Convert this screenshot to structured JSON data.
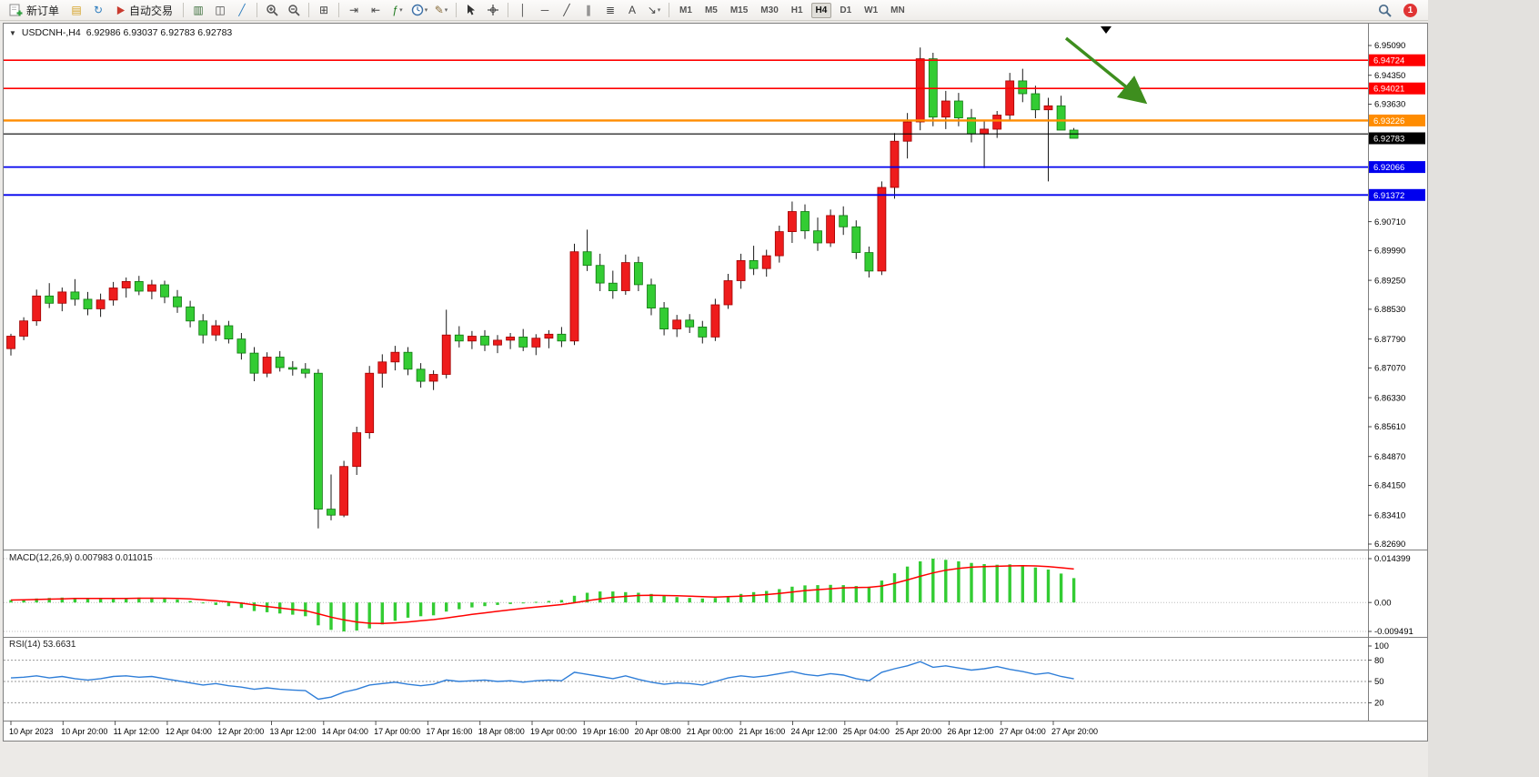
{
  "header": {
    "expander_glyph": "▼",
    "symbol_title": "USDCNH-,H4",
    "ohlc": "6.92986 6.93037 6.92783 6.92783"
  },
  "toolbar": {
    "dropdown_glyph": "▾",
    "active_timeframe": "H4",
    "timeframes": [
      "M1",
      "M5",
      "M15",
      "M30",
      "H1",
      "H4",
      "D1",
      "W1",
      "MN"
    ],
    "items": [
      {
        "kind": "button",
        "name": "new-order-button",
        "svg": "neworder",
        "label": "新订单"
      },
      {
        "kind": "icon",
        "name": "market-depth-icon",
        "glyph": "▤",
        "color": "#d5a021"
      },
      {
        "kind": "icon",
        "name": "refresh-data-icon",
        "glyph": "↻",
        "color": "#2e7dbe"
      },
      {
        "kind": "button",
        "name": "algo-trading-button",
        "svg": "play",
        "label": "自动交易"
      },
      {
        "kind": "sep"
      },
      {
        "kind": "icon",
        "name": "bar-chart-icon",
        "glyph": "▥",
        "color": "#3c6e3c"
      },
      {
        "kind": "icon",
        "name": "candlestick-chart-icon",
        "glyph": "◫",
        "color": "#444444"
      },
      {
        "kind": "icon",
        "name": "line-chart-icon",
        "glyph": "╱",
        "color": "#2e7dbe"
      },
      {
        "kind": "sep"
      },
      {
        "kind": "icon",
        "name": "zoom-in-icon",
        "svg": "zoomin"
      },
      {
        "kind": "icon",
        "name": "zoom-out-icon",
        "svg": "zoomout"
      },
      {
        "kind": "sep"
      },
      {
        "kind": "icon",
        "name": "tile-windows-icon",
        "glyph": "⊞",
        "color": "#444444"
      },
      {
        "kind": "sep"
      },
      {
        "kind": "icon",
        "name": "auto-scroll-icon",
        "glyph": "⇥",
        "color": "#444444"
      },
      {
        "kind": "icon",
        "name": "chart-shift-icon",
        "glyph": "⇤",
        "color": "#444444"
      },
      {
        "kind": "icon",
        "name": "indicators-button",
        "glyph": "ƒ",
        "color": "#1f7a1f",
        "dropdown": true
      },
      {
        "kind": "icon",
        "name": "periods-button",
        "svg": "clock",
        "dropdown": true
      },
      {
        "kind": "icon",
        "name": "templates-button",
        "glyph": "✎",
        "color": "#8a6d3b",
        "dropdown": true
      },
      {
        "kind": "sep"
      },
      {
        "kind": "icon",
        "name": "cursor-icon",
        "svg": "cursor"
      },
      {
        "kind": "icon",
        "name": "crosshair-icon",
        "svg": "crosshair"
      },
      {
        "kind": "sep"
      },
      {
        "kind": "icon",
        "name": "vertical-line-icon",
        "glyph": "│",
        "color": "#444444"
      },
      {
        "kind": "icon",
        "name": "horizontal-line-icon",
        "glyph": "─",
        "color": "#444444"
      },
      {
        "kind": "icon",
        "name": "trendline-icon",
        "glyph": "╱",
        "color": "#444444"
      },
      {
        "kind": "icon",
        "name": "channel-icon",
        "glyph": "∥",
        "color": "#444444"
      },
      {
        "kind": "icon",
        "name": "fibonacci-icon",
        "glyph": "≣",
        "color": "#444444"
      },
      {
        "kind": "icon",
        "name": "text-icon",
        "glyph": "A",
        "color": "#444444"
      },
      {
        "kind": "icon",
        "name": "arrow-objects-icon",
        "glyph": "↘",
        "color": "#444444",
        "dropdown": true
      },
      {
        "kind": "sep"
      }
    ],
    "right_items": [
      {
        "kind": "icon",
        "name": "search-symbol-icon",
        "svg": "magnifier"
      },
      {
        "kind": "badge",
        "name": "notifications-badge",
        "label": "1"
      }
    ]
  },
  "chart_data": {
    "type": "candlestick",
    "symbol": "USDCNH-",
    "timeframe": "H4",
    "ohlc_display": {
      "open": "6.92986",
      "high": "6.93037",
      "low": "6.92783",
      "close": "6.92783"
    },
    "up_color": "#ee1c1c",
    "up_border": "#a00000",
    "down_color": "#33cc33",
    "down_border": "#117711",
    "price_axis_labels": [
      "6.95090",
      "6.94350",
      "6.93630",
      "6.90710",
      "6.89990",
      "6.89250",
      "6.88530",
      "6.87790",
      "6.87070",
      "6.86330",
      "6.85610",
      "6.84870",
      "6.84150",
      "6.83410",
      "6.82690"
    ],
    "price_axis_top": 6.9509,
    "price_axis_bottom": 6.8269,
    "horizontal_lines": [
      {
        "price": 6.94724,
        "label": "6.94724",
        "color": "#ff0000",
        "width": 1.6
      },
      {
        "price": 6.94021,
        "label": "6.94021",
        "color": "#ff0000",
        "width": 1.6
      },
      {
        "price": 6.93226,
        "label": "6.93226",
        "color": "#ff8c00",
        "width": 2.4
      },
      {
        "price": 6.9289,
        "label": "",
        "color": "#000000",
        "width": 1.2
      },
      {
        "price": 6.92066,
        "label": "6.92066",
        "color": "#0000ee",
        "width": 1.8
      },
      {
        "price": 6.91372,
        "label": "6.91372",
        "color": "#0000ee",
        "width": 1.8
      }
    ],
    "bid": {
      "value": 6.92783,
      "label": "6.92783",
      "box_color": "#000000"
    },
    "annotations": [
      {
        "type": "arrow",
        "name": "trend-arrow",
        "direction": "down-right",
        "color": "#3e8e1e"
      }
    ],
    "candles": [
      [
        6.8755,
        6.8792,
        6.8738,
        6.8786
      ],
      [
        6.8786,
        6.8833,
        6.8776,
        6.8824
      ],
      [
        6.8824,
        6.8902,
        6.8812,
        6.8886
      ],
      [
        6.8886,
        6.8918,
        6.8856,
        6.8868
      ],
      [
        6.8868,
        6.8907,
        6.8848,
        6.8896
      ],
      [
        6.8896,
        6.8928,
        6.8862,
        6.8878
      ],
      [
        6.8878,
        6.8896,
        6.8838,
        6.8854
      ],
      [
        6.8854,
        6.8892,
        6.8834,
        6.8876
      ],
      [
        6.8876,
        6.8921,
        6.8862,
        6.8906
      ],
      [
        6.8906,
        6.8932,
        6.8882,
        6.8922
      ],
      [
        6.8922,
        6.8936,
        6.8888,
        6.8898
      ],
      [
        6.8898,
        6.8926,
        6.8878,
        6.8914
      ],
      [
        6.8914,
        6.8924,
        6.8868,
        6.8884
      ],
      [
        6.8884,
        6.8901,
        6.8844,
        6.8859
      ],
      [
        6.8859,
        6.8874,
        6.8808,
        6.8824
      ],
      [
        6.8824,
        6.8841,
        6.8768,
        6.8789
      ],
      [
        6.8789,
        6.8826,
        6.8774,
        6.8812
      ],
      [
        6.8812,
        6.8824,
        6.8768,
        6.8779
      ],
      [
        6.8779,
        6.8794,
        6.8728,
        6.8744
      ],
      [
        6.8744,
        6.8759,
        6.8674,
        6.8694
      ],
      [
        6.8694,
        6.8746,
        6.8684,
        6.8734
      ],
      [
        6.8734,
        6.8749,
        6.8698,
        6.8708
      ],
      [
        6.8708,
        6.8724,
        6.8688,
        6.8704
      ],
      [
        6.8704,
        6.8719,
        6.8682,
        6.8694
      ],
      [
        6.8694,
        6.8704,
        6.8308,
        6.8356
      ],
      [
        6.8356,
        6.8442,
        6.8328,
        6.8341
      ],
      [
        6.8341,
        6.8476,
        6.8336,
        6.8462
      ],
      [
        6.8462,
        6.8561,
        6.8441,
        6.8546
      ],
      [
        6.8546,
        6.8712,
        6.8531,
        6.8694
      ],
      [
        6.8694,
        6.8741,
        6.8658,
        6.8722
      ],
      [
        6.8722,
        6.8762,
        6.8701,
        6.8746
      ],
      [
        6.8746,
        6.8759,
        6.8689,
        6.8704
      ],
      [
        6.8704,
        6.8719,
        6.8658,
        6.8674
      ],
      [
        6.8674,
        6.8701,
        6.8652,
        6.8691
      ],
      [
        6.8691,
        6.8852,
        6.8681,
        6.8789
      ],
      [
        6.8789,
        6.8811,
        6.8758,
        6.8774
      ],
      [
        6.8774,
        6.8799,
        6.8754,
        6.8786
      ],
      [
        6.8786,
        6.8801,
        6.8749,
        6.8764
      ],
      [
        6.8764,
        6.8789,
        6.8744,
        6.8776
      ],
      [
        6.8776,
        6.8794,
        6.8754,
        6.8784
      ],
      [
        6.8784,
        6.8804,
        6.8749,
        6.8759
      ],
      [
        6.8759,
        6.8791,
        6.8739,
        6.8781
      ],
      [
        6.8781,
        6.8801,
        6.8756,
        6.8791
      ],
      [
        6.8791,
        6.8809,
        6.8759,
        6.8774
      ],
      [
        6.8774,
        6.9016,
        6.8764,
        6.8996
      ],
      [
        6.8996,
        6.9051,
        6.8948,
        6.8962
      ],
      [
        6.8962,
        6.8991,
        6.8898,
        6.8918
      ],
      [
        6.8918,
        6.8949,
        6.8879,
        6.8899
      ],
      [
        6.8899,
        6.8989,
        6.8889,
        6.8969
      ],
      [
        6.8969,
        6.8984,
        6.8898,
        6.8914
      ],
      [
        6.8914,
        6.8929,
        6.8838,
        6.8856
      ],
      [
        6.8856,
        6.8871,
        6.8788,
        6.8804
      ],
      [
        6.8804,
        6.8839,
        6.8784,
        6.8826
      ],
      [
        6.8826,
        6.8841,
        6.8794,
        6.8809
      ],
      [
        6.8809,
        6.8824,
        6.8768,
        6.8784
      ],
      [
        6.8784,
        6.8879,
        6.8774,
        6.8864
      ],
      [
        6.8864,
        6.8941,
        6.8854,
        6.8924
      ],
      [
        6.8924,
        6.8991,
        6.8904,
        6.8974
      ],
      [
        6.8974,
        6.9011,
        6.8938,
        6.8954
      ],
      [
        6.8954,
        6.9001,
        6.8934,
        6.8986
      ],
      [
        6.8986,
        6.9061,
        6.8969,
        6.9046
      ],
      [
        6.9046,
        6.9121,
        6.9018,
        6.9096
      ],
      [
        6.9096,
        6.9114,
        6.9028,
        6.9048
      ],
      [
        6.9048,
        6.9081,
        6.8998,
        6.9018
      ],
      [
        6.9018,
        6.9101,
        6.9008,
        6.9086
      ],
      [
        6.9086,
        6.9109,
        6.9038,
        6.9058
      ],
      [
        6.9058,
        6.9074,
        6.8978,
        6.8994
      ],
      [
        6.8994,
        6.9009,
        6.8932,
        6.8948
      ],
      [
        6.8948,
        6.9171,
        6.8938,
        6.9156
      ],
      [
        6.9156,
        6.9291,
        6.9128,
        6.9271
      ],
      [
        6.9271,
        6.9341,
        6.9228,
        6.9319
      ],
      [
        6.9319,
        6.9504,
        6.9298,
        6.9476
      ],
      [
        6.9476,
        6.9491,
        6.9308,
        6.9331
      ],
      [
        6.9331,
        6.9396,
        6.9301,
        6.9371
      ],
      [
        6.9371,
        6.9391,
        6.9308,
        6.9329
      ],
      [
        6.9329,
        6.9351,
        6.9268,
        6.9289
      ],
      [
        6.9289,
        6.9321,
        6.9204,
        6.9301
      ],
      [
        6.9301,
        6.9346,
        6.9279,
        6.9336
      ],
      [
        6.9336,
        6.9441,
        6.9324,
        6.9421
      ],
      [
        6.9421,
        6.9451,
        6.9368,
        6.9389
      ],
      [
        6.9389,
        6.9409,
        6.9328,
        6.9349
      ],
      [
        6.9349,
        6.9379,
        6.9171,
        6.9359
      ],
      [
        6.9359,
        6.9384,
        6.9301,
        6.92986
      ],
      [
        6.92986,
        6.93037,
        6.92783,
        6.92783
      ]
    ],
    "time_axis_labels": [
      "10 Apr 2023",
      "10 Apr 20:00",
      "11 Apr 12:00",
      "12 Apr 04:00",
      "12 Apr 20:00",
      "13 Apr 12:00",
      "14 Apr 04:00",
      "17 Apr 00:00",
      "17 Apr 16:00",
      "18 Apr 08:00",
      "19 Apr 00:00",
      "19 Apr 16:00",
      "20 Apr 08:00",
      "21 Apr 00:00",
      "21 Apr 16:00",
      "24 Apr 12:00",
      "25 Apr 04:00",
      "25 Apr 20:00",
      "26 Apr 12:00",
      "27 Apr 04:00",
      "27 Apr 20:00"
    ],
    "macd": {
      "display": "MACD(12,26,9) 0.007983 0.011015",
      "axis_labels": [
        "0.014399",
        "0.00",
        "-0.009491"
      ],
      "histogram_color": "#33cc33",
      "signal_color": "#ff0000",
      "histogram": [
        0.0008,
        0.001,
        0.0013,
        0.0015,
        0.0016,
        0.0015,
        0.0013,
        0.0012,
        0.0013,
        0.0015,
        0.0016,
        0.0016,
        0.0014,
        0.001,
        0.0005,
        -0.0002,
        -0.0008,
        -0.0012,
        -0.0018,
        -0.0028,
        -0.0032,
        -0.0036,
        -0.004,
        -0.0045,
        -0.0075,
        -0.009,
        -0.0095,
        -0.0092,
        -0.0085,
        -0.0072,
        -0.006,
        -0.005,
        -0.0045,
        -0.0042,
        -0.003,
        -0.0022,
        -0.0016,
        -0.0012,
        -0.0008,
        -0.0005,
        -0.0002,
        0.0002,
        0.0005,
        0.0008,
        0.0022,
        0.0032,
        0.0036,
        0.0036,
        0.0034,
        0.0032,
        0.0028,
        0.0022,
        0.0018,
        0.0015,
        0.0013,
        0.0015,
        0.002,
        0.0028,
        0.0034,
        0.0038,
        0.0044,
        0.0052,
        0.0056,
        0.0057,
        0.0058,
        0.0057,
        0.0054,
        0.0052,
        0.0072,
        0.0096,
        0.0118,
        0.0135,
        0.0144,
        0.014,
        0.0135,
        0.013,
        0.0126,
        0.0124,
        0.0125,
        0.0122,
        0.0115,
        0.0108,
        0.0095,
        0.008
      ],
      "signal": [
        0.0008,
        0.0009,
        0.001,
        0.0011,
        0.0012,
        0.0013,
        0.0013,
        0.0013,
        0.0013,
        0.0013,
        0.0014,
        0.0014,
        0.0014,
        0.0013,
        0.0012,
        0.0009,
        0.0006,
        0.0002,
        -0.0002,
        -0.0008,
        -0.0013,
        -0.0018,
        -0.0023,
        -0.0027,
        -0.0037,
        -0.0048,
        -0.0057,
        -0.0064,
        -0.0068,
        -0.0069,
        -0.0067,
        -0.0064,
        -0.006,
        -0.0056,
        -0.0051,
        -0.0045,
        -0.0039,
        -0.0034,
        -0.0029,
        -0.0024,
        -0.0019,
        -0.0015,
        -0.0011,
        -0.0007,
        -0.0001,
        0.0006,
        0.0012,
        0.0017,
        0.002,
        0.0023,
        0.0024,
        0.0023,
        0.0022,
        0.0021,
        0.0019,
        0.0018,
        0.0019,
        0.0021,
        0.0023,
        0.0026,
        0.003,
        0.0034,
        0.0039,
        0.0042,
        0.0045,
        0.0048,
        0.0049,
        0.005,
        0.0054,
        0.0063,
        0.0074,
        0.0086,
        0.0097,
        0.0106,
        0.0112,
        0.0116,
        0.0118,
        0.0119,
        0.012,
        0.0121,
        0.012,
        0.0118,
        0.0114,
        0.011
      ]
    },
    "rsi": {
      "display": "RSI(14) 53.6631",
      "axis_labels": [
        "100",
        "80",
        "50",
        "20"
      ],
      "line_color": "#2f7ed8",
      "values": [
        55,
        56,
        58,
        55,
        57,
        54,
        52,
        54,
        57,
        58,
        56,
        57,
        54,
        51,
        48,
        45,
        47,
        44,
        42,
        39,
        41,
        39,
        38,
        37,
        25,
        28,
        35,
        39,
        45,
        47,
        49,
        46,
        44,
        46,
        52,
        50,
        51,
        52,
        50,
        51,
        49,
        51,
        52,
        51,
        63,
        60,
        57,
        54,
        58,
        53,
        49,
        46,
        48,
        47,
        45,
        50,
        55,
        58,
        56,
        58,
        61,
        64,
        60,
        58,
        61,
        59,
        54,
        51,
        63,
        68,
        72,
        78,
        70,
        72,
        69,
        66,
        68,
        71,
        67,
        64,
        60,
        62,
        57,
        53.66
      ]
    }
  }
}
